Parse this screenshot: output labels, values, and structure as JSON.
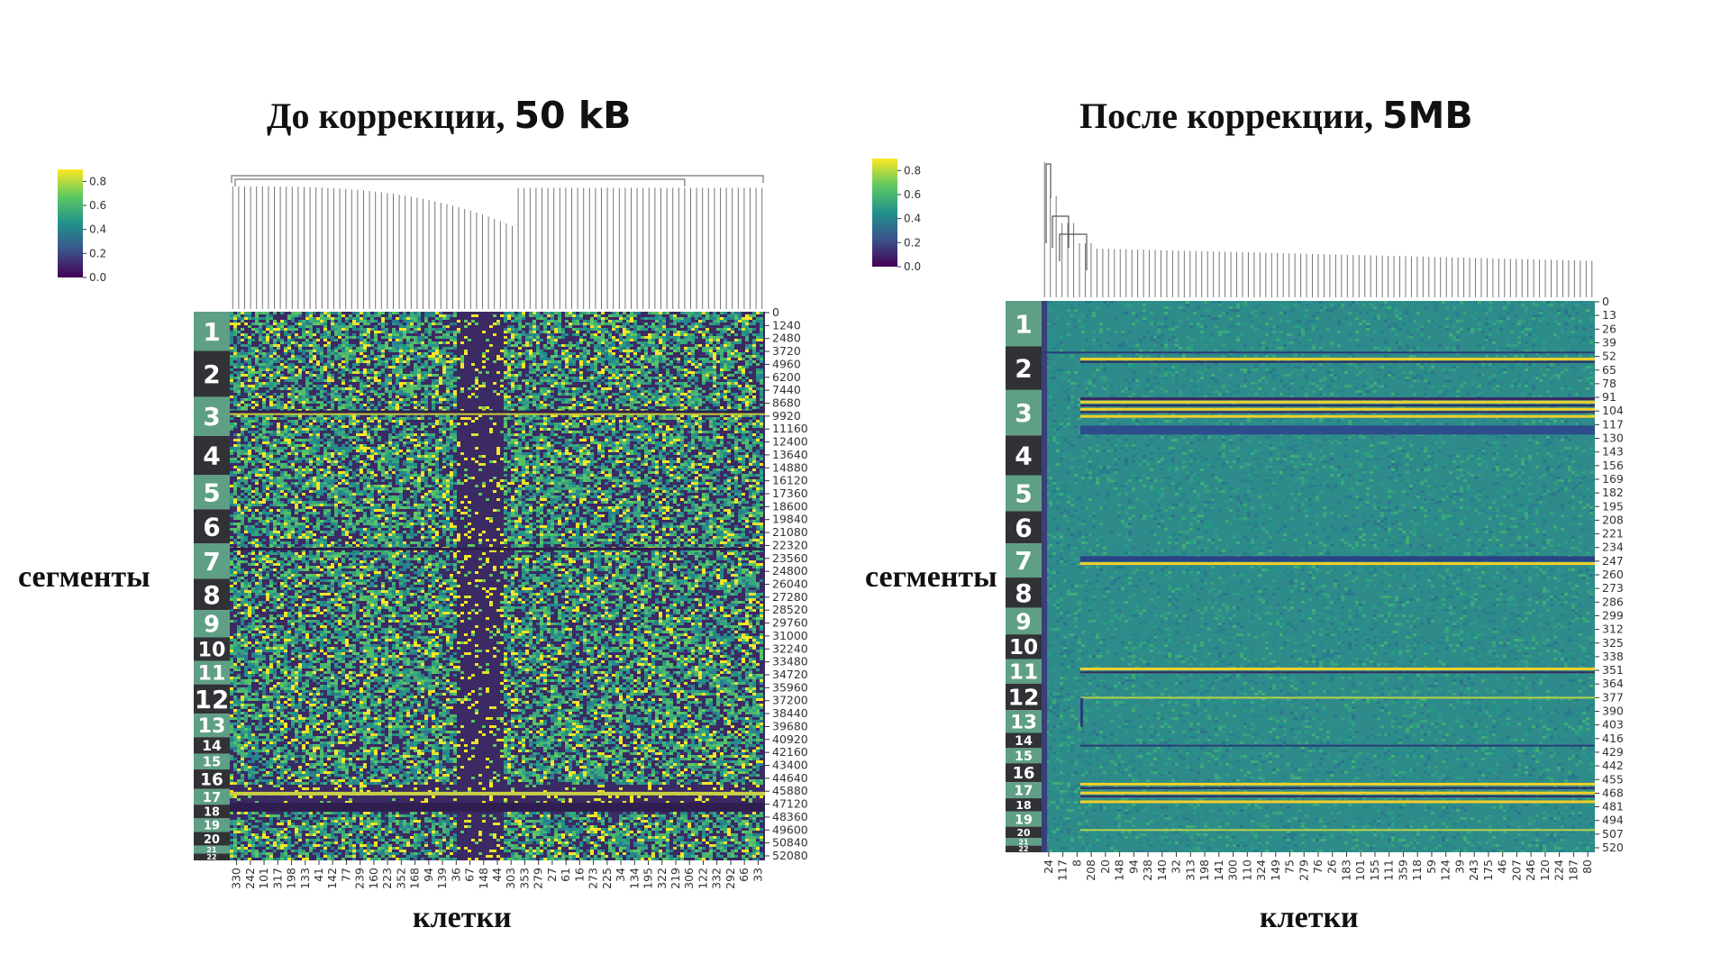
{
  "chart_data": [
    {
      "type": "heatmap",
      "title": "До коррекции,",
      "title_suffix": "50 kB",
      "xlabel": "клетки",
      "ylabel": "сегменты",
      "colorbar": {
        "ticks": [
          "0.0",
          "0.2",
          "0.4",
          "0.6",
          "0.8"
        ],
        "range": [
          0,
          0.9
        ],
        "colormap": "viridis"
      },
      "segments": [
        "1",
        "2",
        "3",
        "4",
        "5",
        "6",
        "7",
        "8",
        "9",
        "10",
        "11",
        "12",
        "13",
        "14",
        "15",
        "16",
        "17",
        "18",
        "19",
        "20",
        "21",
        "22"
      ],
      "y_ticks": [
        "0",
        "1240",
        "2480",
        "3720",
        "4960",
        "6200",
        "7440",
        "8680",
        "9920",
        "11160",
        "12400",
        "13640",
        "14880",
        "16120",
        "17360",
        "18600",
        "19840",
        "21080",
        "22320",
        "23560",
        "24800",
        "26040",
        "27280",
        "28520",
        "29760",
        "31000",
        "32240",
        "33480",
        "34720",
        "35960",
        "37200",
        "38440",
        "39680",
        "40920",
        "42160",
        "43400",
        "44640",
        "45880",
        "47120",
        "48360",
        "49600",
        "50840",
        "52080"
      ],
      "x_ticks": [
        "330",
        "242",
        "101",
        "317",
        "198",
        "133",
        "41",
        "142",
        "77",
        "239",
        "160",
        "223",
        "352",
        "168",
        "94",
        "139",
        "36",
        "67",
        "148",
        "44",
        "303",
        "353",
        "279",
        "27",
        "61",
        "16",
        "273",
        "225",
        "34",
        "134",
        "195",
        "322",
        "219",
        "306",
        "122",
        "332",
        "292",
        "66",
        "33"
      ]
    },
    {
      "type": "heatmap",
      "title": "После коррекции,",
      "title_suffix": "5MB",
      "xlabel": "клетки",
      "ylabel": "сегменты",
      "colorbar": {
        "ticks": [
          "0.0",
          "0.2",
          "0.4",
          "0.6",
          "0.8"
        ],
        "range": [
          0,
          0.9
        ],
        "colormap": "viridis"
      },
      "segments": [
        "1",
        "2",
        "3",
        "4",
        "5",
        "6",
        "7",
        "8",
        "9",
        "10",
        "11",
        "12",
        "13",
        "14",
        "15",
        "16",
        "17",
        "18",
        "19",
        "20",
        "21",
        "22"
      ],
      "y_ticks": [
        "0",
        "13",
        "26",
        "39",
        "52",
        "65",
        "78",
        "91",
        "104",
        "117",
        "130",
        "143",
        "156",
        "169",
        "182",
        "195",
        "208",
        "221",
        "234",
        "247",
        "260",
        "273",
        "286",
        "299",
        "312",
        "325",
        "338",
        "351",
        "364",
        "377",
        "390",
        "403",
        "416",
        "429",
        "442",
        "455",
        "468",
        "481",
        "494",
        "507",
        "520"
      ],
      "x_ticks": [
        "24",
        "117",
        "8",
        "208",
        "20",
        "148",
        "94",
        "238",
        "140",
        "32",
        "313",
        "198",
        "141",
        "300",
        "110",
        "324",
        "149",
        "75",
        "279",
        "76",
        "26",
        "183",
        "101",
        "155",
        "111",
        "359",
        "118",
        "59",
        "124",
        "39",
        "243",
        "175",
        "46",
        "207",
        "246",
        "120",
        "224",
        "187",
        "80"
      ]
    }
  ]
}
